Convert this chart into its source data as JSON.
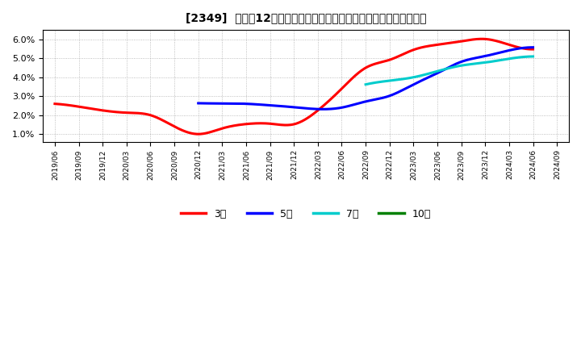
{
  "title": "[2349]  売上高12か月移動合計の対前年同期増減率の標準偏差の推移",
  "background_color": "#ffffff",
  "plot_bg_color": "#ffffff",
  "grid_color": "#999999",
  "series": {
    "3年": {
      "color": "#ff0000",
      "data": [
        [
          "2019/06",
          0.026
        ],
        [
          "2019/09",
          0.0245
        ],
        [
          "2019/12",
          0.0225
        ],
        [
          "2020/03",
          0.0213
        ],
        [
          "2020/06",
          0.02
        ],
        [
          "2020/09",
          0.014
        ],
        [
          "2020/12",
          0.01
        ],
        [
          "2021/03",
          0.013
        ],
        [
          "2021/06",
          0.0153
        ],
        [
          "2021/09",
          0.0155
        ],
        [
          "2021/12",
          0.0152
        ],
        [
          "2022/03",
          0.0225
        ],
        [
          "2022/06",
          0.034
        ],
        [
          "2022/09",
          0.045
        ],
        [
          "2022/12",
          0.0492
        ],
        [
          "2023/03",
          0.0545
        ],
        [
          "2023/06",
          0.0572
        ],
        [
          "2023/09",
          0.059
        ],
        [
          "2023/12",
          0.0602
        ],
        [
          "2024/03",
          0.0572
        ],
        [
          "2024/06",
          0.0548
        ]
      ]
    },
    "5年": {
      "color": "#0000ff",
      "data": [
        [
          "2020/12",
          0.0263
        ],
        [
          "2021/03",
          0.0262
        ],
        [
          "2021/06",
          0.026
        ],
        [
          "2021/09",
          0.0252
        ],
        [
          "2021/12",
          0.0242
        ],
        [
          "2022/03",
          0.0232
        ],
        [
          "2022/06",
          0.024
        ],
        [
          "2022/09",
          0.0272
        ],
        [
          "2022/12",
          0.0302
        ],
        [
          "2023/03",
          0.0362
        ],
        [
          "2023/06",
          0.0422
        ],
        [
          "2023/09",
          0.0482
        ],
        [
          "2023/12",
          0.0512
        ],
        [
          "2024/03",
          0.0542
        ],
        [
          "2024/06",
          0.0558
        ]
      ]
    },
    "7年": {
      "color": "#00cccc",
      "data": [
        [
          "2022/09",
          0.0362
        ],
        [
          "2022/12",
          0.0382
        ],
        [
          "2023/03",
          0.04
        ],
        [
          "2023/06",
          0.0432
        ],
        [
          "2023/09",
          0.0462
        ],
        [
          "2023/12",
          0.0478
        ],
        [
          "2024/03",
          0.0498
        ],
        [
          "2024/06",
          0.051
        ]
      ]
    },
    "10年": {
      "color": "#008000",
      "data": []
    }
  },
  "legend_labels": [
    "3年",
    "5年",
    "7年",
    "10年"
  ],
  "legend_colors": [
    "#ff0000",
    "#0000ff",
    "#00cccc",
    "#008000"
  ],
  "xtick_labels": [
    "2019/06",
    "2019/09",
    "2019/12",
    "2020/03",
    "2020/06",
    "2020/09",
    "2020/12",
    "2021/03",
    "2021/06",
    "2021/09",
    "2021/12",
    "2022/03",
    "2022/06",
    "2022/09",
    "2022/12",
    "2023/03",
    "2023/06",
    "2023/09",
    "2023/12",
    "2024/03",
    "2024/06",
    "2024/09"
  ],
  "ytick_values": [
    0.01,
    0.02,
    0.03,
    0.04,
    0.05,
    0.06
  ],
  "ytick_labels": [
    "1.0%",
    "2.0%",
    "3.0%",
    "4.0%",
    "5.0%",
    "6.0%"
  ],
  "ylim_min": 0.006,
  "ylim_max": 0.065
}
